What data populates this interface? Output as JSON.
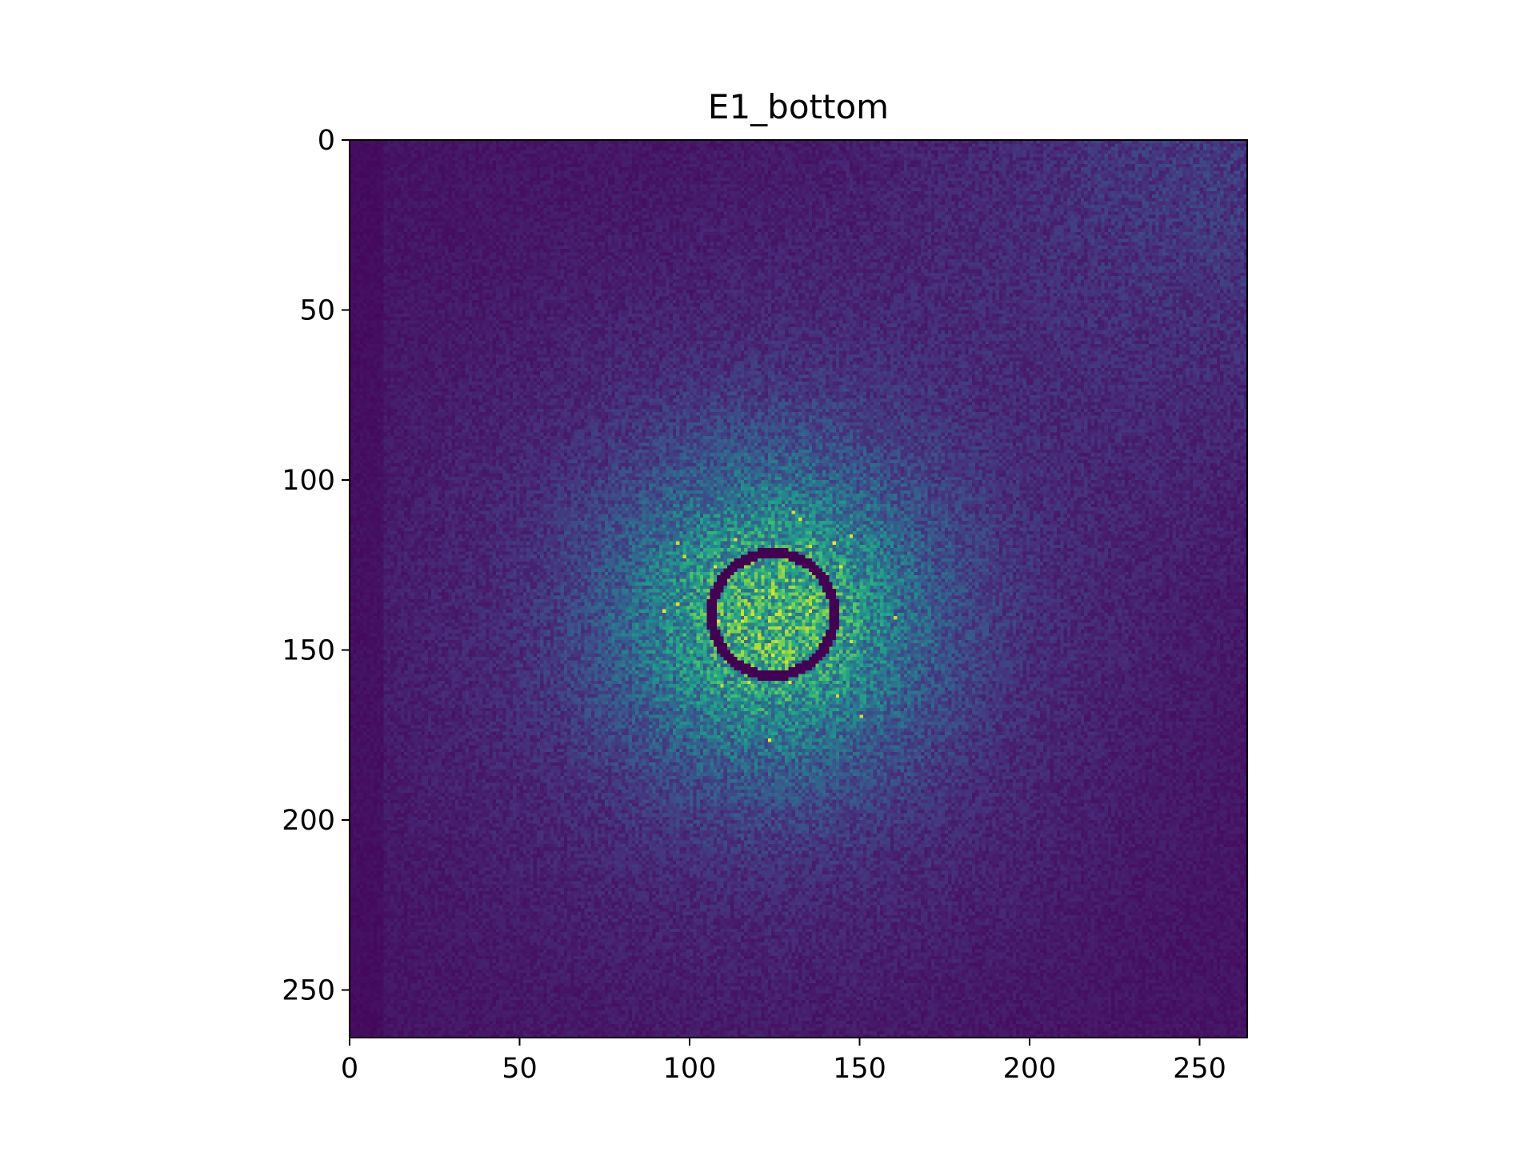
{
  "chart_data": {
    "type": "heatmap",
    "title": "E1_bottom",
    "xlabel": "",
    "ylabel": "",
    "colormap": "viridis",
    "image_size": [
      264,
      264
    ],
    "xlim": [
      0,
      264
    ],
    "ylim": [
      264,
      0
    ],
    "y_axis_inverted": true,
    "x_ticks": [
      0,
      50,
      100,
      150,
      200,
      250
    ],
    "y_ticks": [
      0,
      50,
      100,
      150,
      200,
      250
    ],
    "x_tick_labels": [
      "0",
      "50",
      "100",
      "150",
      "200",
      "250"
    ],
    "y_tick_labels": [
      "0",
      "50",
      "100",
      "150",
      "200",
      "250"
    ],
    "features": {
      "intensity_peak_center": [
        124,
        140
      ],
      "intensity_peak_sigma": 30,
      "secondary_glow_corner": "top-right",
      "masked_ring_center": [
        124,
        139
      ],
      "masked_ring_radius": 18,
      "masked_ring_width": 3,
      "noise": "speckled"
    },
    "grid": false,
    "legend": "none"
  }
}
